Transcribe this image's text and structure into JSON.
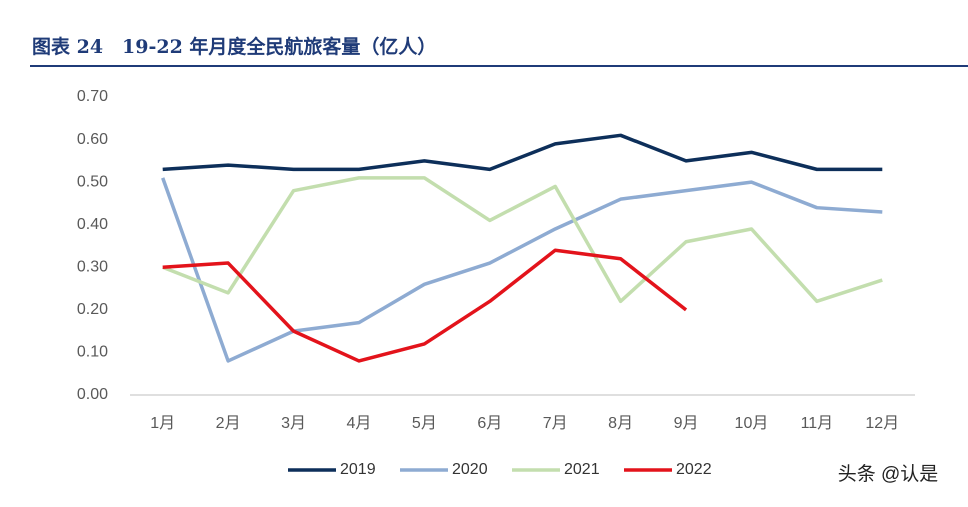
{
  "header": {
    "title": "图表 24　19-22 年月度全民航旅客量（亿人）"
  },
  "chart_data": {
    "type": "line",
    "categories": [
      "1月",
      "2月",
      "3月",
      "4月",
      "5月",
      "6月",
      "7月",
      "8月",
      "9月",
      "10月",
      "11月",
      "12月"
    ],
    "series": [
      {
        "name": "2019",
        "color": "#0d2f5a",
        "values": [
          0.53,
          0.54,
          0.53,
          0.53,
          0.55,
          0.53,
          0.59,
          0.61,
          0.55,
          0.57,
          0.53,
          0.53
        ]
      },
      {
        "name": "2020",
        "color": "#8eabd2",
        "values": [
          0.51,
          0.08,
          0.15,
          0.17,
          0.26,
          0.31,
          0.39,
          0.46,
          0.48,
          0.5,
          0.44,
          0.43
        ]
      },
      {
        "name": "2021",
        "color": "#c3deae",
        "values": [
          0.3,
          0.24,
          0.48,
          0.51,
          0.51,
          0.41,
          0.49,
          0.22,
          0.36,
          0.39,
          0.22,
          0.27
        ]
      },
      {
        "name": "2022",
        "color": "#e3131b",
        "values": [
          0.3,
          0.31,
          0.15,
          0.08,
          0.12,
          0.22,
          0.34,
          0.32,
          0.2,
          null,
          null,
          null
        ]
      }
    ],
    "ylim": [
      0,
      0.7
    ],
    "yticks": [
      {
        "value": 0,
        "label": "0.00"
      },
      {
        "value": 0.1,
        "label": "0.10"
      },
      {
        "value": 0.2,
        "label": "0.20"
      },
      {
        "value": 0.3,
        "label": "0.30"
      },
      {
        "value": 0.4,
        "label": "0.40"
      },
      {
        "value": 0.5,
        "label": "0.50"
      },
      {
        "value": 0.6,
        "label": "0.60"
      },
      {
        "value": 0.7,
        "label": "0.70"
      }
    ],
    "grid": false,
    "legend": "bottom"
  },
  "watermark": "头条 @认是"
}
